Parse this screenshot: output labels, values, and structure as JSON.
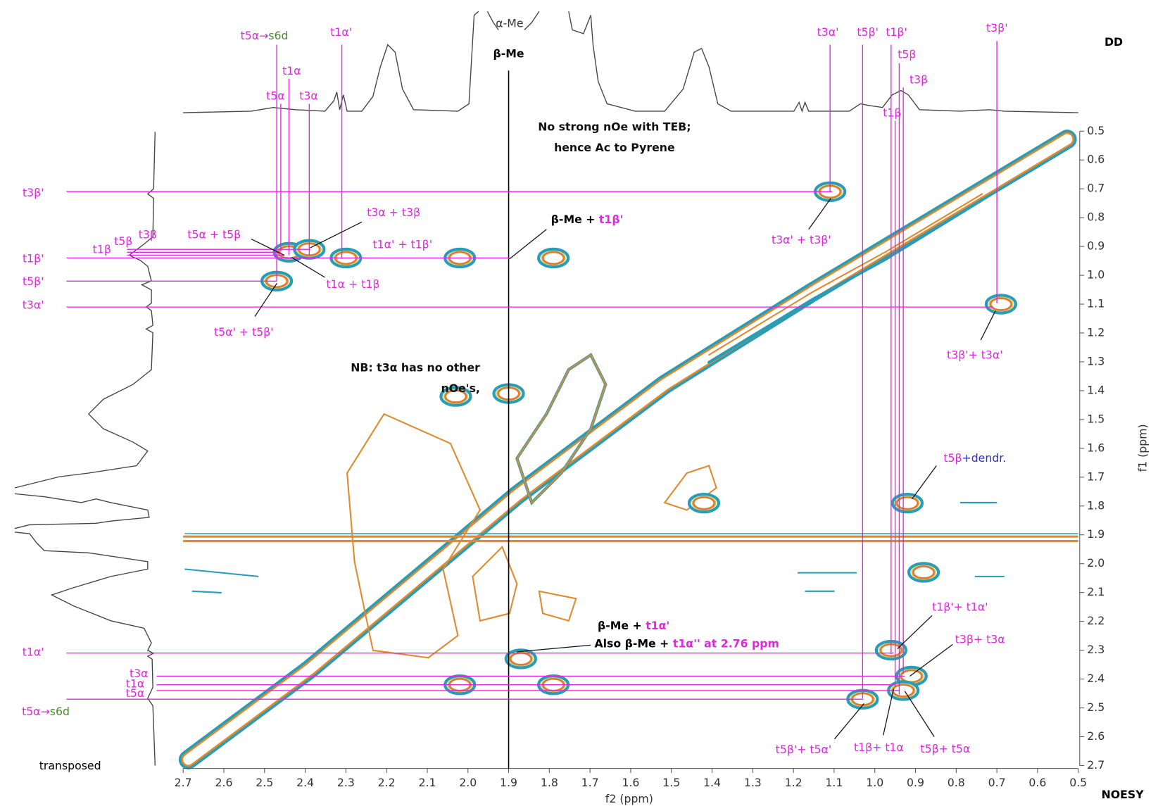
{
  "title": "DD",
  "left_note": "transposed",
  "right_note": "NOESY",
  "chart_data": {
    "type": "noesy",
    "xlabel": "f2 (ppm)",
    "ylabel": "f1 (ppm)",
    "xlim": [
      2.7,
      0.5
    ],
    "ylim": [
      0.5,
      2.7
    ],
    "xticks": [
      2.7,
      2.6,
      2.5,
      2.4,
      2.3,
      2.2,
      2.1,
      {
        "value": 2,
        "label": "2.0"
      },
      1.9,
      1.8,
      1.7,
      1.6,
      1.5,
      1.4,
      1.3,
      1.2,
      1.1,
      {
        "value": 1,
        "label": "1.0"
      },
      0.9,
      0.8,
      0.7,
      0.6,
      0.5
    ],
    "yticks": [
      0.5,
      0.6,
      0.7,
      0.8,
      0.9,
      {
        "value": 1,
        "label": "1.0"
      },
      1.1,
      1.2,
      1.3,
      1.4,
      1.5,
      1.6,
      1.7,
      1.8,
      1.9,
      {
        "value": 2,
        "label": "2.0"
      },
      2.1,
      2.2,
      2.3,
      2.4,
      2.5,
      2.6,
      2.7
    ],
    "guide_color": "#e026e0",
    "reference_color": "#000000",
    "references": [
      {
        "label": "β-Me",
        "ppm": 1.9
      }
    ],
    "small_label": "α-Me",
    "f2_guides": [
      {
        "label": [
          {
            "text": "t5α→",
            "color": "#e026e0"
          },
          {
            "text": "s6d",
            "color": "#4a8a2a"
          }
        ],
        "ppm": 2.47
      },
      {
        "label": "t1α",
        "ppm": 2.44
      },
      {
        "label": "t5α",
        "ppm": 2.46
      },
      {
        "label": "t3α",
        "ppm": 2.39
      },
      {
        "label": "t1α'",
        "ppm": 2.31
      },
      {
        "label": "t3α'",
        "ppm": 1.11
      },
      {
        "label": "t5β'",
        "ppm": 1.03
      },
      {
        "label": "t1β'",
        "ppm": 0.96
      },
      {
        "label": "t1β",
        "ppm": 0.95
      },
      {
        "label": "t5β",
        "ppm": 0.94
      },
      {
        "label": "t3β",
        "ppm": 0.93
      },
      {
        "label": "t3β'",
        "ppm": 0.7
      }
    ],
    "f1_guides": [
      {
        "label": "t3β'",
        "ppm": 0.71
      },
      {
        "label": "t1β'",
        "ppm": 0.94
      },
      {
        "label": "t5β'",
        "ppm": 1.02
      },
      {
        "label": "t3α'",
        "ppm": 1.11
      },
      {
        "label": "t1β",
        "ppm": 0.92
      },
      {
        "label": "t5β",
        "ppm": 0.93
      },
      {
        "label": "t3β",
        "ppm": 0.91
      },
      {
        "label": "t1α'",
        "ppm": 2.31
      },
      {
        "label": "t3α",
        "ppm": 2.39
      },
      {
        "label": "t1α",
        "ppm": 2.42
      },
      {
        "label": "t5α",
        "ppm": 2.44
      },
      {
        "label": [
          {
            "text": "t5α→",
            "color": "#e026e0"
          },
          {
            "text": "s6d",
            "color": "#4a8a2a"
          }
        ],
        "ppm": 2.47
      }
    ],
    "peaks": [
      {
        "f2": 1.11,
        "f1": 0.71
      },
      {
        "f2": 2.44,
        "f1": 0.92
      },
      {
        "f2": 2.39,
        "f1": 0.91
      },
      {
        "f2": 2.3,
        "f1": 0.94
      },
      {
        "f2": 2.02,
        "f1": 0.94
      },
      {
        "f2": 1.79,
        "f1": 0.94
      },
      {
        "f2": 2.47,
        "f1": 1.02
      },
      {
        "f2": 0.69,
        "f1": 1.1
      },
      {
        "f2": 2.03,
        "f1": 1.42
      },
      {
        "f2": 1.9,
        "f1": 1.41
      },
      {
        "f2": 0.92,
        "f1": 1.79
      },
      {
        "f2": 0.96,
        "f1": 2.3
      },
      {
        "f2": 1.03,
        "f1": 2.47
      },
      {
        "f2": 0.91,
        "f1": 2.39
      },
      {
        "f2": 0.93,
        "f1": 2.44
      },
      {
        "f2": 2.02,
        "f1": 2.42
      },
      {
        "f2": 1.79,
        "f1": 2.42
      },
      {
        "f2": 1.87,
        "f1": 2.33
      },
      {
        "f2": 0.88,
        "f1": 2.03
      },
      {
        "f2": 1.42,
        "f1": 1.79
      }
    ],
    "annotations": [
      {
        "label": "t3α + t3β"
      },
      {
        "label": "t5α + t5β"
      },
      {
        "label": "t1α' + t1β'"
      },
      {
        "label": "t1α + t1β"
      },
      {
        "label": "t5α' + t5β'"
      },
      {
        "label": [
          {
            "text": "β-Me + ",
            "color": "#000000"
          },
          {
            "text": "t1β'",
            "color": "#e026e0"
          }
        ]
      },
      {
        "label": "t3α' + t3β'"
      },
      {
        "label": "t3β'+ t3α'"
      },
      {
        "label": [
          {
            "text": "t5β",
            "color": "#e026e0"
          },
          {
            "text": "+dendr.",
            "color": "#3030d0"
          }
        ]
      },
      {
        "label": "t1β'+ t1α'"
      },
      {
        "label": "t3β+ t3α"
      },
      {
        "label": "t5β'+ t5α'"
      },
      {
        "label": "t1β+ t1α"
      },
      {
        "label": "t5β+ t5α"
      },
      {
        "label": [
          {
            "text": "β-Me + ",
            "color": "#000000"
          },
          {
            "text": "t1α'",
            "color": "#e026e0"
          }
        ]
      },
      {
        "label": [
          {
            "text": "Also β-Me + ",
            "color": "#000000"
          },
          {
            "text": "t1α'' at 2.76 ppm",
            "color": "#e026e0"
          }
        ]
      }
    ],
    "notes": [
      {
        "lines": [
          "No strong nOe with TEB;",
          "hence Ac to Pyrene"
        ]
      },
      {
        "lines": [
          "NB: t3α has no other",
          "nOe's,"
        ]
      }
    ]
  }
}
